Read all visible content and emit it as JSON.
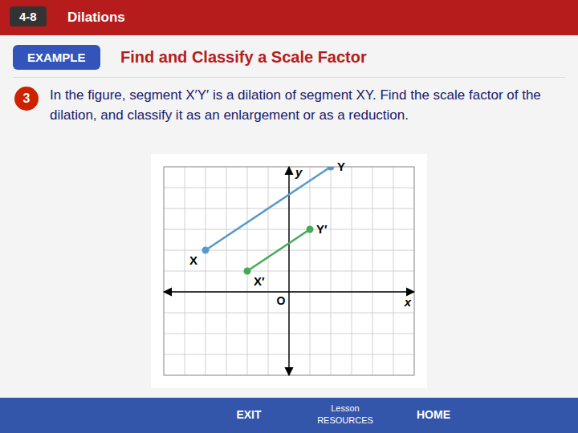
{
  "chart_data": {
    "type": "line",
    "title": "Find and Classify a Scale Factor",
    "x_label": "x",
    "y_label": "y",
    "xlim": [
      -6,
      6
    ],
    "ylim": [
      -4,
      6
    ],
    "xticks": [
      -6,
      -5,
      -4,
      -3,
      -2,
      -1,
      0,
      1,
      2,
      3,
      4,
      5,
      6
    ],
    "yticks": [
      -4,
      -3,
      -2,
      -1,
      0,
      1,
      2,
      3,
      4,
      5,
      6
    ],
    "grid": true,
    "tick_labels": false,
    "series": [
      {
        "color": "#5599cc",
        "marker": "circle",
        "x": [
          -4,
          2
        ],
        "values": [
          2,
          6
        ],
        "point_labels": [
          "X",
          "Y"
        ]
      },
      {
        "color": "#44aa55",
        "marker": "circle",
        "x": [
          -2,
          1
        ],
        "values": [
          1,
          3
        ],
        "point_labels": [
          "X′",
          "Y′"
        ]
      }
    ],
    "annotations": [
      "4-8",
      "Dilations",
      "EXAMPLE",
      "3",
      "In the figure, segment X′Y′ is a dilation of segment XY. Find the scale factor of the dilation, and classify it as an enlargement or as a reduction.",
      "O",
      "EXIT",
      "Lesson\nRESOURCES",
      "HOME"
    ]
  }
}
